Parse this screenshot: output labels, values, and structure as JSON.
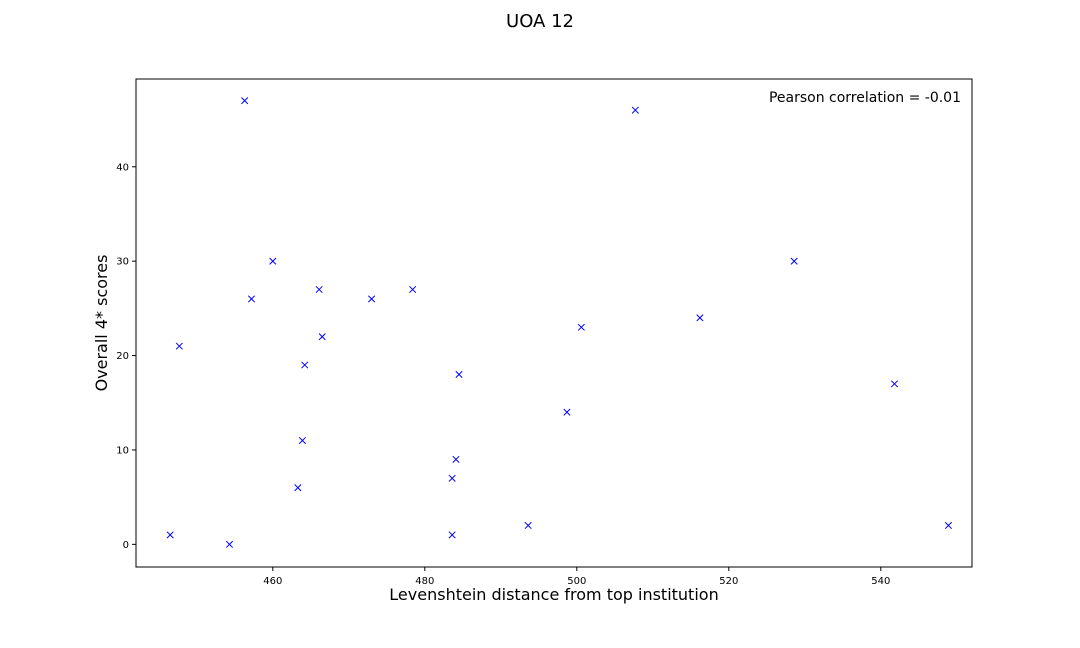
{
  "chart_data": {
    "type": "scatter",
    "title": "UOA 12",
    "xlabel": "Levenshtein distance from top institution",
    "ylabel": "Overall 4* scores",
    "annotation": "Pearson correlation = -0.01",
    "xlim": [
      442,
      552
    ],
    "ylim": [
      -2.4,
      49.3
    ],
    "xticks": [
      460,
      480,
      500,
      520,
      540
    ],
    "yticks": [
      0,
      10,
      20,
      30,
      40
    ],
    "marker": "x",
    "marker_color": "#0000ff",
    "grid": false,
    "points": [
      {
        "x": 446.5,
        "y": 1
      },
      {
        "x": 447.7,
        "y": 21
      },
      {
        "x": 454.3,
        "y": 0
      },
      {
        "x": 456.3,
        "y": 47
      },
      {
        "x": 457.2,
        "y": 26
      },
      {
        "x": 460.0,
        "y": 30
      },
      {
        "x": 463.3,
        "y": 6
      },
      {
        "x": 463.9,
        "y": 11
      },
      {
        "x": 464.2,
        "y": 19
      },
      {
        "x": 466.1,
        "y": 27
      },
      {
        "x": 466.5,
        "y": 22
      },
      {
        "x": 473.0,
        "y": 26
      },
      {
        "x": 478.4,
        "y": 27
      },
      {
        "x": 483.6,
        "y": 7
      },
      {
        "x": 483.6,
        "y": 1
      },
      {
        "x": 484.1,
        "y": 9
      },
      {
        "x": 484.5,
        "y": 18
      },
      {
        "x": 493.6,
        "y": 2
      },
      {
        "x": 498.7,
        "y": 14
      },
      {
        "x": 500.6,
        "y": 23
      },
      {
        "x": 507.7,
        "y": 46
      },
      {
        "x": 516.2,
        "y": 24
      },
      {
        "x": 528.6,
        "y": 30
      },
      {
        "x": 541.8,
        "y": 17
      },
      {
        "x": 548.9,
        "y": 2
      }
    ]
  }
}
